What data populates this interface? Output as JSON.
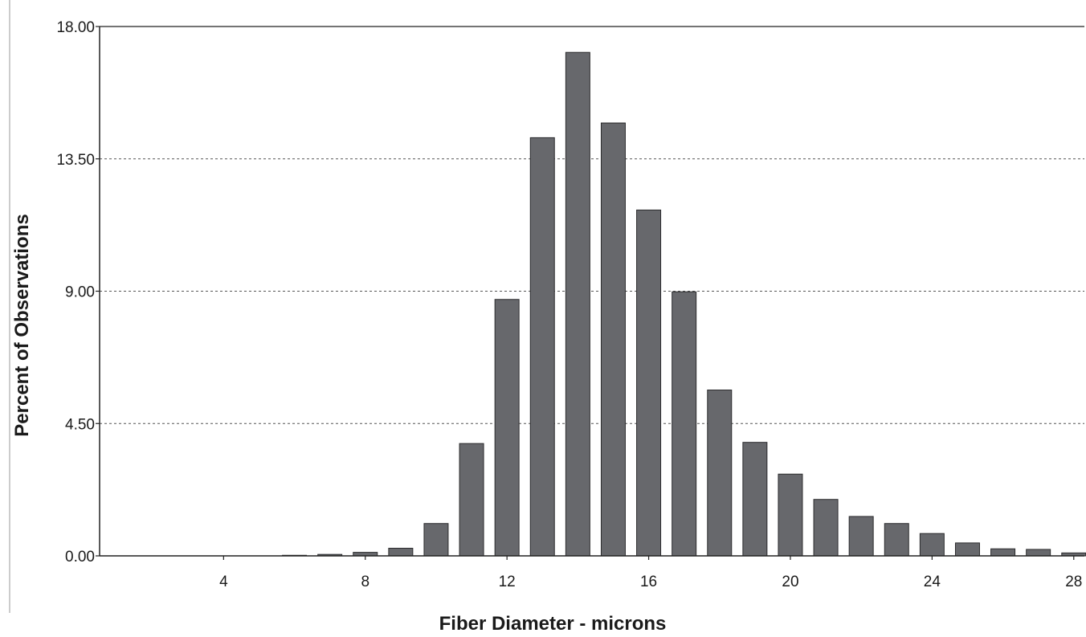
{
  "chart_data": {
    "type": "bar",
    "xlabel": "Fiber Diameter - microns",
    "ylabel": "Percent of Observations",
    "x": [
      2,
      3,
      4,
      5,
      6,
      7,
      8,
      9,
      10,
      11,
      12,
      13,
      14,
      15,
      16,
      17,
      18,
      19,
      20,
      21,
      22,
      23,
      24,
      25,
      26,
      27,
      28
    ],
    "values": [
      0,
      0,
      0,
      0,
      0.02,
      0.05,
      0.12,
      0.26,
      1.1,
      3.82,
      8.72,
      14.22,
      17.12,
      14.72,
      11.76,
      8.98,
      5.64,
      3.86,
      2.78,
      1.92,
      1.34,
      1.1,
      0.76,
      0.44,
      0.24,
      0.22,
      0.1
    ],
    "xlim": [
      0.5,
      28.3
    ],
    "ylim": [
      0,
      18
    ],
    "xticks": [
      4,
      8,
      12,
      16,
      20,
      24,
      28
    ],
    "xtick_labels": [
      "4",
      "8",
      "12",
      "16",
      "20",
      "24",
      "28"
    ],
    "yticks": [
      0,
      4.5,
      9,
      13.5,
      18
    ],
    "ytick_labels": [
      "0.00",
      "4.50",
      "9.00",
      "13.50",
      "18.00"
    ],
    "grid": true,
    "colors": {
      "bar_fill": "#67686c",
      "bar_stroke": "#2b2b2d",
      "grid": "#555555",
      "axis": "#222222"
    }
  }
}
